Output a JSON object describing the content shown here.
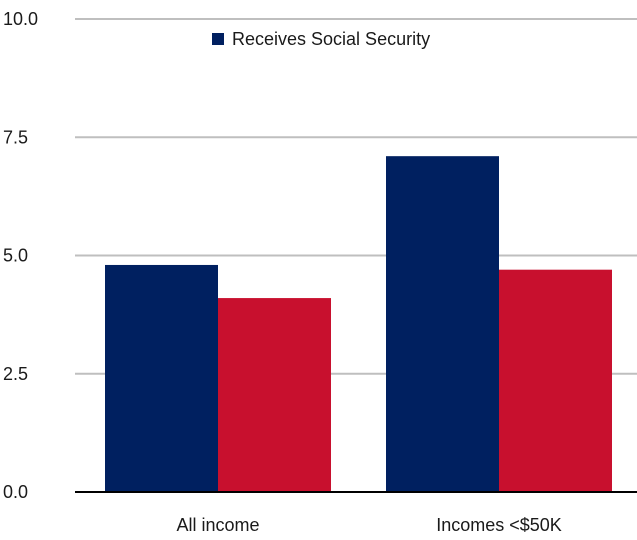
{
  "chart_data": {
    "type": "bar",
    "categories": [
      "All income",
      "Incomes <$50K"
    ],
    "series": [
      {
        "name": "Receives Social Security",
        "values": [
          4.8,
          7.1
        ],
        "color": "#002060"
      },
      {
        "values": [
          4.1,
          4.7
        ],
        "color": "#C8102E"
      }
    ],
    "ylim": [
      0,
      10
    ],
    "yticks": [
      "0.0",
      "2.5",
      "5.0",
      "7.5",
      "10.0"
    ],
    "grid": true,
    "legend_position": "top-center",
    "xlabel": "",
    "ylabel": "",
    "title": ""
  },
  "colors": {
    "gridline": "#BFBFBF",
    "axis": "#000000"
  }
}
